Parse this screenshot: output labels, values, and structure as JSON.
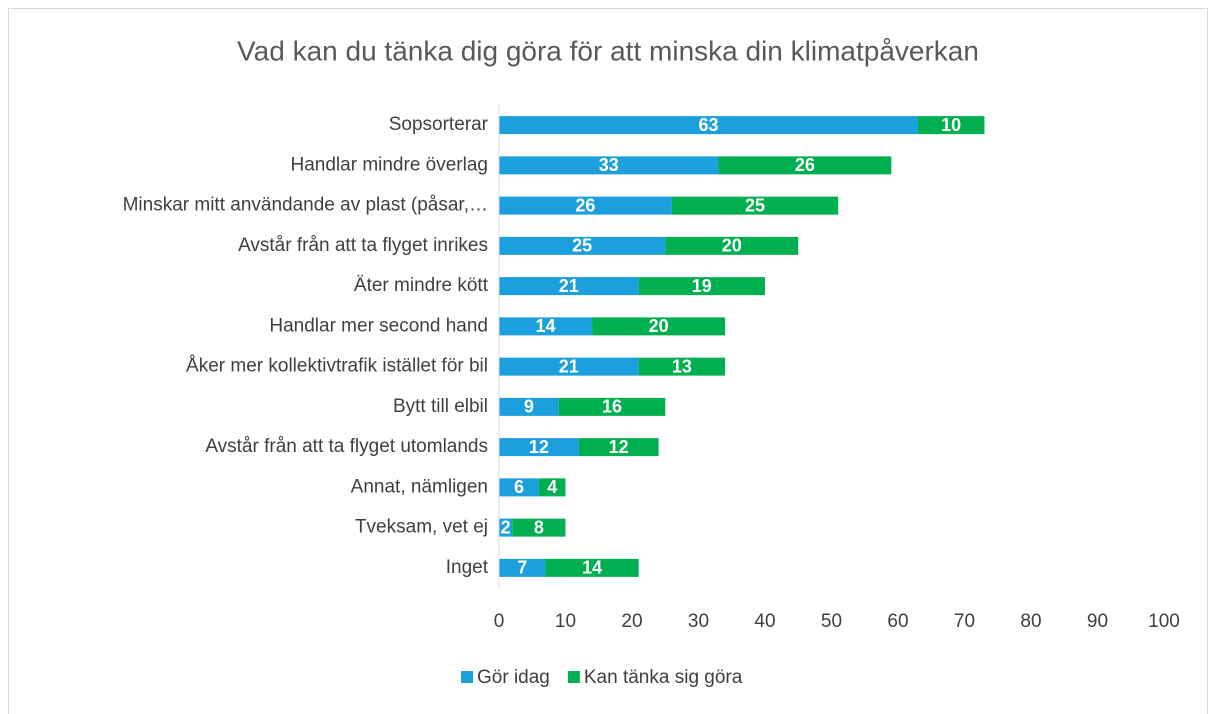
{
  "chart_data": {
    "type": "bar",
    "orientation": "horizontal",
    "stacked": true,
    "title": "Vad kan du tänka dig göra för att minska din klimatpåverkan",
    "categories": [
      "Sopsorterar",
      "Handlar mindre överlag",
      "Minskar mitt användande av plast (påsar,…",
      "Avstår från att ta flyget inrikes",
      "Äter mindre kött",
      "Handlar mer second hand",
      "Åker mer kollektivtrafik istället för bil",
      "Bytt till elbil",
      "Avstår från att ta flyget utomlands",
      "Annat, nämligen",
      "Tveksam, vet ej",
      "Inget"
    ],
    "series": [
      {
        "name": "Gör idag",
        "color": "#1c9fdc",
        "values": [
          63,
          33,
          26,
          25,
          21,
          14,
          21,
          9,
          12,
          6,
          2,
          7
        ]
      },
      {
        "name": "Kan tänka sig göra",
        "color": "#00b050",
        "values": [
          10,
          26,
          25,
          20,
          19,
          20,
          13,
          16,
          12,
          4,
          8,
          14
        ]
      }
    ],
    "xlim": [
      0,
      100
    ],
    "xticks": [
      0,
      10,
      20,
      30,
      40,
      50,
      60,
      70,
      80,
      90,
      100
    ],
    "grid": false,
    "legend": "bottom"
  }
}
